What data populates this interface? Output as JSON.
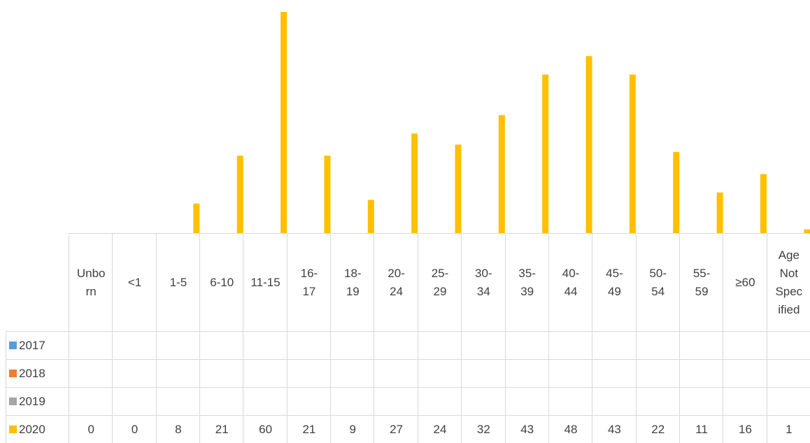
{
  "chart_data": {
    "type": "bar",
    "categories": [
      "Unborn",
      "<1",
      "1-5",
      "6-10",
      "11-15",
      "16-17",
      "18-19",
      "20-24",
      "25-29",
      "30-34",
      "35-39",
      "40-44",
      "45-49",
      "50-54",
      "55-59",
      "≥60",
      "Age Not Specified"
    ],
    "series": [
      {
        "name": "2017",
        "color": "#5b9bd5",
        "values": [
          null,
          null,
          null,
          null,
          null,
          null,
          null,
          null,
          null,
          null,
          null,
          null,
          null,
          null,
          null,
          null,
          null
        ]
      },
      {
        "name": "2018",
        "color": "#ed7d31",
        "values": [
          null,
          null,
          null,
          null,
          null,
          null,
          null,
          null,
          null,
          null,
          null,
          null,
          null,
          null,
          null,
          null,
          null
        ]
      },
      {
        "name": "2019",
        "color": "#a5a5a5",
        "values": [
          null,
          null,
          null,
          null,
          null,
          null,
          null,
          null,
          null,
          null,
          null,
          null,
          null,
          null,
          null,
          null,
          null
        ]
      },
      {
        "name": "2020",
        "color": "#ffc000",
        "values": [
          0,
          0,
          8,
          21,
          60,
          21,
          9,
          27,
          24,
          32,
          43,
          48,
          43,
          22,
          11,
          16,
          1
        ]
      }
    ],
    "data_table": true
  }
}
